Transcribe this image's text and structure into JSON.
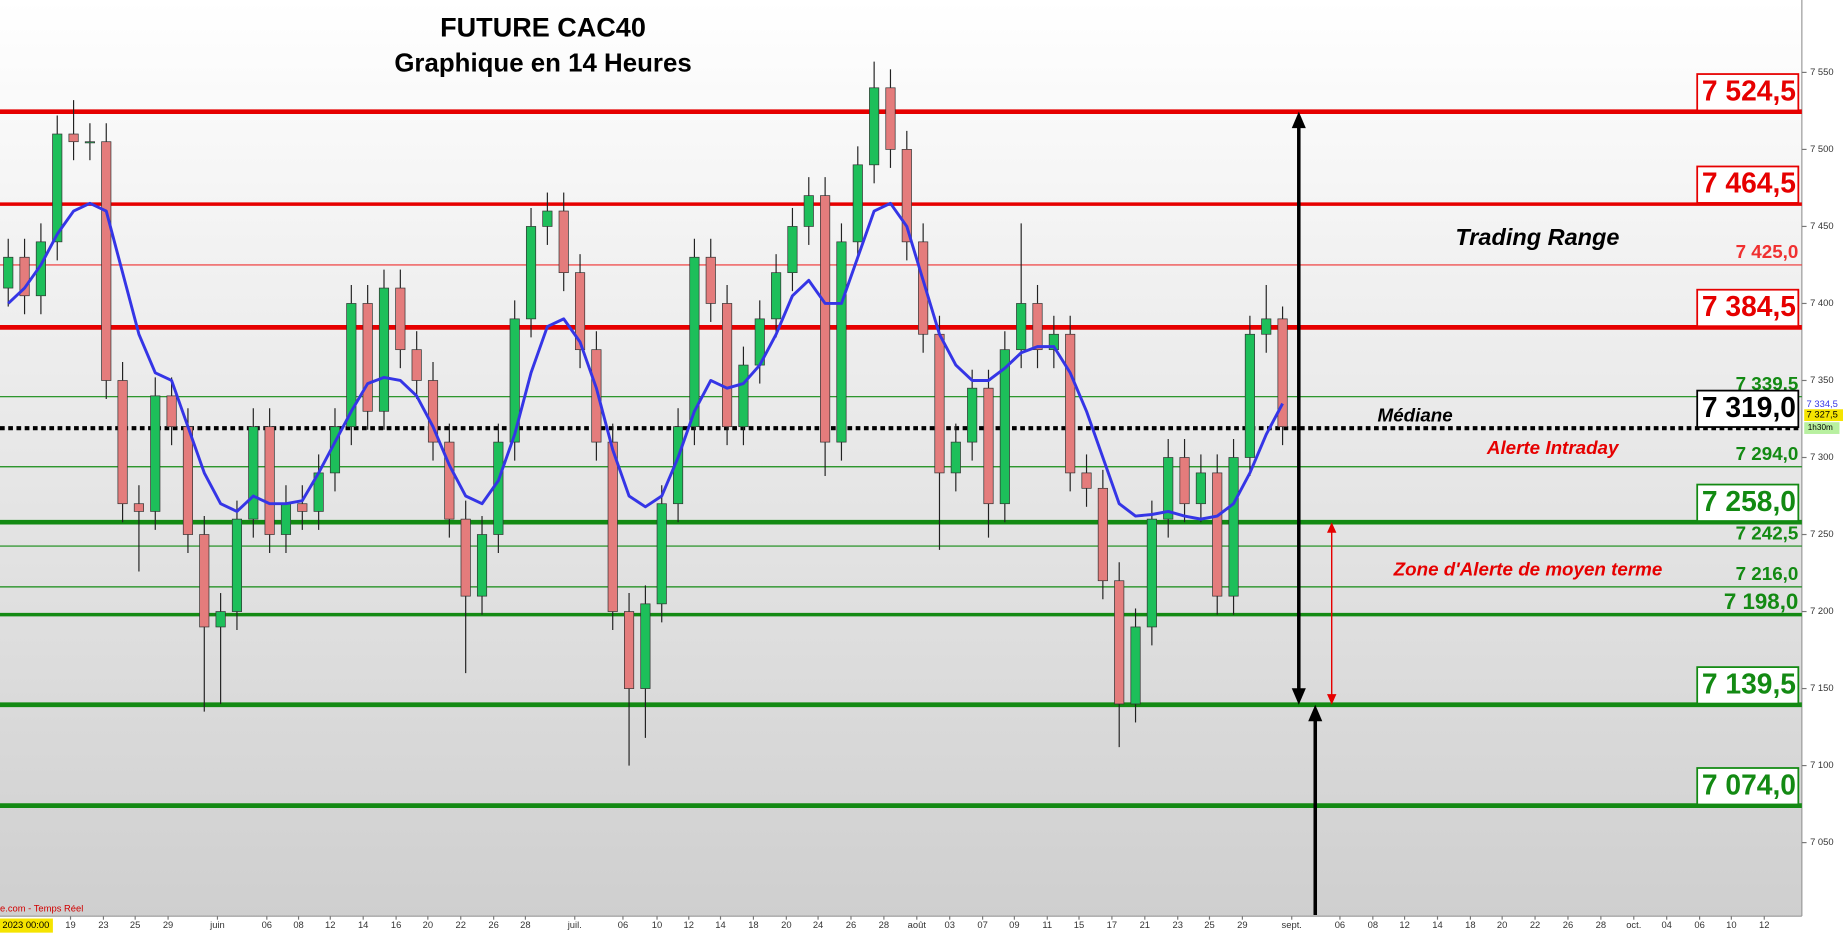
{
  "chart_data": {
    "type": "candlestick",
    "title": "FUTURE CAC40",
    "subtitle": "Graphique en 14 Heures",
    "x_labels": [
      "19",
      "23",
      "25",
      "29",
      "juin",
      "06",
      "08",
      "12",
      "14",
      "16",
      "20",
      "22",
      "26",
      "28",
      "juil.",
      "06",
      "10",
      "12",
      "14",
      "18",
      "20",
      "24",
      "26",
      "28",
      "août",
      "03",
      "07",
      "09",
      "11",
      "15",
      "17",
      "21",
      "23",
      "25",
      "29",
      "sept.",
      "06",
      "08",
      "12",
      "14",
      "18",
      "20",
      "22",
      "26",
      "28",
      "oct.",
      "04",
      "06",
      "10",
      "12"
    ],
    "open": [
      7410,
      7430,
      7405,
      7440,
      7510,
      7505,
      7505,
      7350,
      7270,
      7265,
      7340,
      7320,
      7250,
      7190,
      7200,
      7260,
      7320,
      7250,
      7270,
      7265,
      7290,
      7320,
      7400,
      7330,
      7410,
      7370,
      7350,
      7310,
      7260,
      7210,
      7250,
      7310,
      7390,
      7450,
      7460,
      7420,
      7370,
      7310,
      7200,
      7150,
      7205,
      7270,
      7320,
      7430,
      7400,
      7320,
      7360,
      7390,
      7420,
      7450,
      7470,
      7310,
      7440,
      7490,
      7540,
      7500,
      7440,
      7380,
      7290,
      7310,
      7345,
      7270,
      7370,
      7400,
      7370,
      7380,
      7290,
      7280,
      7220,
      7140,
      7190,
      7260,
      7300,
      7270,
      7290,
      7210,
      7300,
      7380,
      7390
    ],
    "high": [
      7442,
      7442,
      7452,
      7522,
      7532,
      7517,
      7517,
      7362,
      7282,
      7352,
      7352,
      7332,
      7262,
      7212,
      7272,
      7332,
      7332,
      7282,
      7282,
      7302,
      7332,
      7412,
      7412,
      7422,
      7422,
      7382,
      7362,
      7322,
      7272,
      7262,
      7322,
      7402,
      7462,
      7472,
      7472,
      7432,
      7382,
      7322,
      7212,
      7217,
      7282,
      7332,
      7442,
      7442,
      7412,
      7372,
      7402,
      7432,
      7462,
      7482,
      7482,
      7452,
      7502,
      7557,
      7552,
      7512,
      7452,
      7392,
      7322,
      7357,
      7357,
      7382,
      7452,
      7412,
      7392,
      7392,
      7302,
      7292,
      7232,
      7202,
      7272,
      7312,
      7312,
      7302,
      7302,
      7312,
      7392,
      7412,
      7398
    ],
    "low": [
      7398,
      7393,
      7393,
      7428,
      7493,
      7493,
      7338,
      7258,
      7226,
      7253,
      7308,
      7238,
      7135,
      7140,
      7188,
      7248,
      7238,
      7238,
      7253,
      7253,
      7278,
      7308,
      7318,
      7318,
      7358,
      7338,
      7298,
      7248,
      7160,
      7198,
      7238,
      7298,
      7378,
      7438,
      7408,
      7358,
      7298,
      7188,
      7100,
      7118,
      7193,
      7258,
      7308,
      7388,
      7308,
      7308,
      7348,
      7378,
      7408,
      7438,
      7288,
      7298,
      7428,
      7478,
      7488,
      7428,
      7368,
      7240,
      7278,
      7298,
      7248,
      7258,
      7358,
      7358,
      7358,
      7278,
      7268,
      7208,
      7112,
      7128,
      7178,
      7248,
      7258,
      7258,
      7198,
      7198,
      7288,
      7368,
      7308
    ],
    "close": [
      7430,
      7405,
      7440,
      7510,
      7505,
      7505,
      7350,
      7270,
      7265,
      7340,
      7320,
      7250,
      7190,
      7200,
      7260,
      7320,
      7250,
      7270,
      7265,
      7290,
      7320,
      7400,
      7330,
      7410,
      7370,
      7350,
      7310,
      7260,
      7210,
      7250,
      7310,
      7390,
      7450,
      7460,
      7420,
      7370,
      7310,
      7200,
      7150,
      7205,
      7270,
      7320,
      7430,
      7400,
      7320,
      7360,
      7390,
      7420,
      7450,
      7470,
      7310,
      7440,
      7490,
      7540,
      7500,
      7440,
      7380,
      7290,
      7310,
      7345,
      7270,
      7370,
      7400,
      7370,
      7380,
      7290,
      7280,
      7220,
      7140,
      7190,
      7260,
      7300,
      7270,
      7290,
      7210,
      7300,
      7380,
      7390,
      7320
    ],
    "up_color": "#1dbf5a",
    "down_color": "#e47c7c",
    "moving_average": {
      "color": "#3535e6",
      "values": [
        7400,
        7410,
        7425,
        7445,
        7460,
        7465,
        7460,
        7420,
        7380,
        7355,
        7350,
        7320,
        7290,
        7270,
        7265,
        7275,
        7270,
        7270,
        7272,
        7290,
        7310,
        7330,
        7348,
        7352,
        7350,
        7340,
        7320,
        7295,
        7275,
        7270,
        7285,
        7315,
        7355,
        7385,
        7390,
        7375,
        7345,
        7305,
        7275,
        7268,
        7275,
        7300,
        7330,
        7350,
        7345,
        7348,
        7360,
        7380,
        7405,
        7415,
        7400,
        7400,
        7430,
        7460,
        7465,
        7450,
        7415,
        7380,
        7360,
        7350,
        7350,
        7358,
        7368,
        7372,
        7372,
        7355,
        7330,
        7300,
        7270,
        7262,
        7263,
        7265,
        7262,
        7260,
        7262,
        7270,
        7290,
        7315,
        7335
      ]
    },
    "ylim": [
      7003,
      7597
    ],
    "yticks": [
      {
        "value": 7050,
        "label": "7 050"
      },
      {
        "value": 7100,
        "label": "7 100"
      },
      {
        "value": 7150,
        "label": "7 150"
      },
      {
        "value": 7200,
        "label": "7 200"
      },
      {
        "value": 7250,
        "label": "7 250"
      },
      {
        "value": 7300,
        "label": "7 300"
      },
      {
        "value": 7350,
        "label": "7 350"
      },
      {
        "value": 7400,
        "label": "7 400"
      },
      {
        "value": 7450,
        "label": "7 450"
      },
      {
        "value": 7500,
        "label": "7 500"
      },
      {
        "value": 7550,
        "label": "7 550"
      }
    ],
    "levels": [
      {
        "value": 7524.5,
        "label": "7 524,5",
        "color": "#e60000",
        "style": "thick",
        "boxed": true
      },
      {
        "value": 7464.5,
        "label": "7 464,5",
        "color": "#e60000",
        "style": "medium",
        "boxed": true
      },
      {
        "value": 7425,
        "label": "7 425,0",
        "color": "#f03030",
        "style": "thin",
        "boxed": false
      },
      {
        "value": 7384.5,
        "label": "7 384,5",
        "color": "#e60000",
        "style": "thick",
        "boxed": true
      },
      {
        "value": 7339.5,
        "label": "7 339,5",
        "color": "#138a13",
        "style": "thin",
        "boxed": false
      },
      {
        "value": 7319,
        "label": "7 319,0",
        "color": "#000000",
        "style": "dotted",
        "boxed": true
      },
      {
        "value": 7294,
        "label": "7 294,0",
        "color": "#138a13",
        "style": "thin",
        "boxed": false
      },
      {
        "value": 7258,
        "label": "7 258,0",
        "color": "#138a13",
        "style": "thick",
        "boxed": true
      },
      {
        "value": 7242.5,
        "label": "7 242,5",
        "color": "#138a13",
        "style": "thin",
        "boxed": false
      },
      {
        "value": 7216,
        "label": "7 216,0",
        "color": "#138a13",
        "style": "thin",
        "boxed": false
      },
      {
        "value": 7198,
        "label": "7 198,0",
        "color": "#138a13",
        "style": "medium",
        "boxed": false
      },
      {
        "value": 7139.5,
        "label": "7 139,5",
        "color": "#138a13",
        "style": "thick",
        "boxed": true
      },
      {
        "value": 7074,
        "label": "7 074,0",
        "color": "#138a13",
        "style": "thick",
        "boxed": true
      }
    ],
    "annotations": {
      "trading_range": "Trading Range",
      "mediane": "Médiane",
      "alerte_intraday": "Alerte Intraday",
      "zone_alerte": "Zone d'Alerte de moyen terme"
    },
    "price_tags": [
      {
        "value": 7334.5,
        "label": "7 334,5"
      },
      {
        "value": 7327.5,
        "label": "7 327,5"
      }
    ],
    "timeframe_tag": "1h30m",
    "source": "e.com - Temps Réel",
    "start_label": "2023 00:00"
  }
}
